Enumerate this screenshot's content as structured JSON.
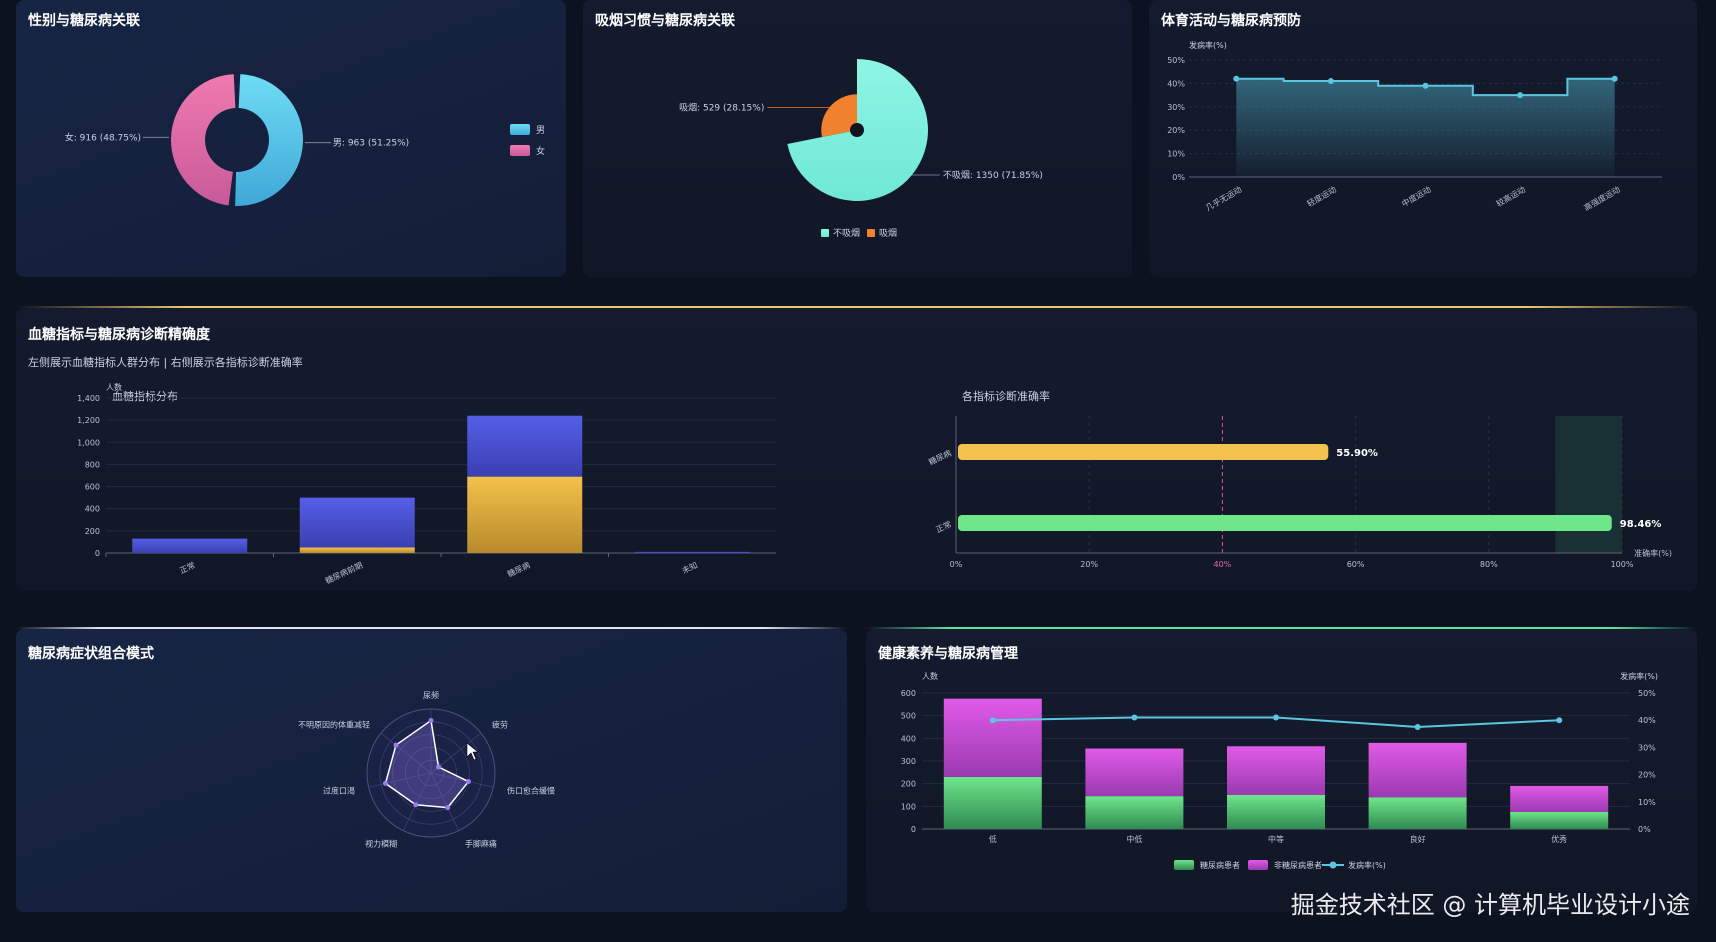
{
  "panels": {
    "gender": {
      "title": "性别与糖尿病关联"
    },
    "smoking": {
      "title": "吸烟习惯与糖尿病关联"
    },
    "activity": {
      "title": "体育活动与糖尿病预防"
    },
    "glucose": {
      "title": "血糖指标与糖尿病诊断精确度",
      "subtitle": "左侧展示血糖指标人群分布 | 右侧展示各指标诊断准确率"
    },
    "symptoms": {
      "title": "糖尿病症状组合模式"
    },
    "literacy": {
      "title": "健康素养与糖尿病管理"
    }
  },
  "watermark": "掘金技术社区 @ 计算机毕业设计小途",
  "colors": {
    "male": "#5fc8ec",
    "female": "#e46aa6",
    "nonsmoker": "#7ff0dc",
    "smoker": "#f0812e",
    "line": "#5cc6e0",
    "gold": "#f2c14e",
    "green": "#6ee68a",
    "blue": "#4f59e0",
    "purple": "#c451d6"
  },
  "chart_data": [
    {
      "type": "pie",
      "title": "性别与糖尿病关联",
      "slices": [
        {
          "name": "男",
          "value": 963,
          "percent": 51.25,
          "label": "男: 963 (51.25%)"
        },
        {
          "name": "女",
          "value": 916,
          "percent": 48.75,
          "label": "女: 916 (48.75%)"
        }
      ],
      "legend": [
        "男",
        "女"
      ],
      "legend_position": "right"
    },
    {
      "type": "pie",
      "title": "吸烟习惯与糖尿病关联",
      "slices": [
        {
          "name": "不吸烟",
          "value": 1350,
          "percent": 71.85,
          "label": "不吸烟: 1350 (71.85%)"
        },
        {
          "name": "吸烟",
          "value": 529,
          "percent": 28.15,
          "label": "吸烟: 529 (28.15%)"
        }
      ],
      "legend": [
        "不吸烟",
        "吸烟"
      ],
      "legend_position": "bottom"
    },
    {
      "type": "area",
      "title": "体育活动与糖尿病预防",
      "ylabel": "发病率(%)",
      "categories": [
        "几乎无运动",
        "轻度运动",
        "中度运动",
        "较高运动",
        "高强度运动"
      ],
      "values": [
        42,
        41,
        39,
        35,
        42
      ],
      "yticks": [
        "0%",
        "10%",
        "20%",
        "30%",
        "40%",
        "50%"
      ],
      "ylim": [
        0,
        50
      ],
      "grid": true
    },
    {
      "type": "bar",
      "title": "血糖指标分布",
      "ylabel": "人数",
      "categories": [
        "正常",
        "糖尿病前期",
        "糖尿病",
        "未知"
      ],
      "series": [
        {
          "values": [
            0,
            50,
            690,
            0
          ]
        },
        {
          "values": [
            130,
            450,
            550,
            10
          ]
        }
      ],
      "stacked": true,
      "yticks": [
        "0",
        "200",
        "400",
        "600",
        "800",
        "1,000",
        "1,200",
        "1,400"
      ],
      "ylim": [
        0,
        1400
      ],
      "grid": true
    },
    {
      "type": "bar",
      "orientation": "horizontal",
      "title": "各指标诊断准确率",
      "xlabel": "准确率(%)",
      "categories": [
        "糖尿病",
        "正常"
      ],
      "values": [
        55.9,
        98.46
      ],
      "data_labels": [
        "55.90%",
        "98.46%"
      ],
      "xticks": [
        "0%",
        "20%",
        "40%",
        "60%",
        "80%",
        "100%"
      ],
      "xlim": [
        0,
        100
      ],
      "markline": 40
    },
    {
      "type": "radar",
      "title": "糖尿病症状组合模式",
      "indicators": [
        "尿频",
        "疲劳",
        "伤口愈合缓慢",
        "手脚麻痛",
        "视力模糊",
        "过度口渴",
        "不明原因的体重减轻"
      ],
      "values": [
        0.82,
        0.15,
        0.6,
        0.6,
        0.55,
        0.73,
        0.7
      ]
    },
    {
      "type": "bar",
      "title": "健康素养与糖尿病管理",
      "ylabel": "人数",
      "y2label": "发病率(%)",
      "categories": [
        "低",
        "中低",
        "中等",
        "良好",
        "优秀"
      ],
      "series": [
        {
          "name": "糖尿病患者",
          "type": "bar",
          "values": [
            230,
            145,
            150,
            140,
            75
          ]
        },
        {
          "name": "非糖尿病患者",
          "type": "bar",
          "values": [
            345,
            210,
            215,
            240,
            115
          ]
        },
        {
          "name": "发病率(%)",
          "type": "line",
          "values": [
            40,
            41,
            41,
            37.5,
            40
          ]
        }
      ],
      "stacked": true,
      "yticks": [
        "0",
        "100",
        "200",
        "300",
        "400",
        "500",
        "600"
      ],
      "y2ticks": [
        "0%",
        "10%",
        "20%",
        "30%",
        "40%",
        "50%"
      ],
      "ylim": [
        0,
        600
      ],
      "y2lim": [
        0,
        50
      ],
      "legend_position": "bottom"
    }
  ]
}
